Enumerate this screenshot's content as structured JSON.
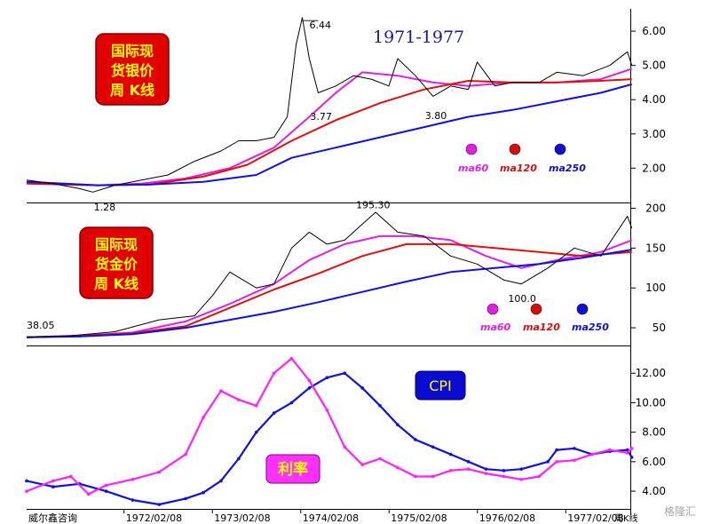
{
  "title": "1971-1977",
  "footer_source": "威尔鑫咨询",
  "footer_period": "周K线",
  "watermark": "格隆汇",
  "x_axis": {
    "range": [
      "1971-01",
      "1977-11"
    ],
    "ticks": [
      "1972/02/08",
      "1973/02/08",
      "1974/02/08",
      "1975/02/08",
      "1976/02/08",
      "1977/02/08"
    ]
  },
  "colors": {
    "price": "#000000",
    "ma60": "#e020e0",
    "ma120": "#e01010",
    "ma250": "#1010e0",
    "cpi": "#1010e0",
    "rate": "#ff20ff",
    "badge": "#e00000",
    "badge_text": "#ffff00"
  },
  "chart_data": [
    {
      "id": "silver",
      "type": "line",
      "badge_lines": [
        "国际现",
        "货银价",
        "周 K线"
      ],
      "y_ticks": [
        2.0,
        3.0,
        4.0,
        5.0,
        6.0
      ],
      "y_tick_labels": [
        "2.00",
        "3.00",
        "4.00",
        "5.00",
        "6.00"
      ],
      "ylim": [
        1.1,
        6.6
      ],
      "annotations": [
        {
          "x": 1974.12,
          "y": 6.44,
          "label": "6.44"
        },
        {
          "x": 1971.7,
          "y": 1.28,
          "label": "1.28"
        },
        {
          "x": 1974.25,
          "y": 3.77,
          "label": "3.77"
        },
        {
          "x": 1975.55,
          "y": 3.8,
          "label": "3.80"
        }
      ],
      "legend": [
        "ma60",
        "ma120",
        "ma250"
      ],
      "series": [
        {
          "key": "price",
          "x": [
            1971.0,
            1971.3,
            1971.6,
            1971.75,
            1972.0,
            1972.3,
            1972.6,
            1972.9,
            1973.2,
            1973.4,
            1973.6,
            1973.8,
            1973.95,
            1974.05,
            1974.12,
            1974.2,
            1974.3,
            1974.5,
            1974.7,
            1974.9,
            1975.1,
            1975.2,
            1975.4,
            1975.6,
            1975.8,
            1976.0,
            1976.1,
            1976.3,
            1976.5,
            1976.8,
            1977.0,
            1977.3,
            1977.6,
            1977.8,
            1977.85
          ],
          "y": [
            1.65,
            1.55,
            1.4,
            1.3,
            1.5,
            1.65,
            1.8,
            2.2,
            2.5,
            2.8,
            2.8,
            2.9,
            3.5,
            5.6,
            6.4,
            5.2,
            4.2,
            4.4,
            4.7,
            4.6,
            4.4,
            5.2,
            4.7,
            4.1,
            4.4,
            4.3,
            5.1,
            4.4,
            4.5,
            4.5,
            4.8,
            4.7,
            5.0,
            5.4,
            5.0
          ]
        },
        {
          "key": "ma60",
          "x": [
            1971.0,
            1971.8,
            1972.3,
            1972.8,
            1973.3,
            1973.8,
            1974.2,
            1974.5,
            1974.8,
            1975.2,
            1975.6,
            1976.0,
            1976.5,
            1977.0,
            1977.5,
            1977.85
          ],
          "y": [
            1.6,
            1.5,
            1.55,
            1.7,
            2.0,
            2.6,
            3.5,
            4.2,
            4.8,
            4.7,
            4.5,
            4.4,
            4.5,
            4.5,
            4.6,
            4.9
          ]
        },
        {
          "key": "ma120",
          "x": [
            1971.0,
            1971.8,
            1972.4,
            1973.0,
            1973.5,
            1974.0,
            1974.5,
            1975.0,
            1975.5,
            1976.0,
            1976.5,
            1977.0,
            1977.5,
            1977.85
          ],
          "y": [
            1.55,
            1.5,
            1.52,
            1.75,
            2.1,
            2.8,
            3.4,
            3.9,
            4.3,
            4.55,
            4.5,
            4.5,
            4.55,
            4.6
          ]
        },
        {
          "key": "ma250",
          "x": [
            1971.0,
            1971.8,
            1972.4,
            1973.0,
            1973.6,
            1974.0,
            1974.5,
            1975.0,
            1975.5,
            1976.0,
            1976.5,
            1977.0,
            1977.5,
            1977.85
          ],
          "y": [
            1.6,
            1.5,
            1.52,
            1.6,
            1.8,
            2.3,
            2.6,
            2.9,
            3.2,
            3.5,
            3.7,
            3.95,
            4.2,
            4.45
          ]
        }
      ]
    },
    {
      "id": "gold",
      "type": "line",
      "badge_lines": [
        "国际现",
        "货金价",
        "周 K线"
      ],
      "y_ticks": [
        50,
        100,
        150,
        200
      ],
      "y_tick_labels": [
        "50",
        "100",
        "150",
        "200"
      ],
      "ylim": [
        30,
        205
      ],
      "annotations": [
        {
          "x": 1974.95,
          "y": 195.3,
          "label": "195.30"
        },
        {
          "x": 1971.0,
          "y": 38.05,
          "label": "38.05"
        },
        {
          "x": 1976.45,
          "y": 100.0,
          "label": "100.0"
        }
      ],
      "legend": [
        "ma60",
        "ma120",
        "ma250"
      ],
      "series": [
        {
          "key": "price",
          "x": [
            1971.0,
            1971.5,
            1972.0,
            1972.5,
            1972.9,
            1973.1,
            1973.3,
            1973.6,
            1973.8,
            1974.0,
            1974.2,
            1974.4,
            1974.6,
            1974.8,
            1974.95,
            1975.2,
            1975.5,
            1975.8,
            1976.1,
            1976.4,
            1976.6,
            1976.9,
            1977.2,
            1977.5,
            1977.8,
            1977.85
          ],
          "y": [
            38,
            40,
            45,
            60,
            65,
            90,
            120,
            100,
            105,
            150,
            170,
            155,
            160,
            180,
            195,
            170,
            165,
            140,
            130,
            110,
            105,
            125,
            150,
            140,
            190,
            175
          ]
        },
        {
          "key": "ma60",
          "x": [
            1971.0,
            1971.6,
            1972.2,
            1972.8,
            1973.3,
            1973.8,
            1974.2,
            1974.6,
            1975.0,
            1975.4,
            1975.8,
            1976.2,
            1976.6,
            1977.0,
            1977.5,
            1977.85
          ],
          "y": [
            38,
            40,
            44,
            58,
            80,
            105,
            135,
            155,
            165,
            165,
            160,
            140,
            125,
            135,
            145,
            160
          ]
        },
        {
          "key": "ma120",
          "x": [
            1971.0,
            1971.6,
            1972.2,
            1972.8,
            1973.3,
            1973.8,
            1974.3,
            1974.8,
            1975.3,
            1975.8,
            1976.3,
            1976.8,
            1977.3,
            1977.85
          ],
          "y": [
            38,
            40,
            43,
            52,
            75,
            98,
            118,
            140,
            155,
            155,
            150,
            145,
            140,
            145
          ]
        },
        {
          "key": "ma250",
          "x": [
            1971.0,
            1971.6,
            1972.2,
            1972.8,
            1973.3,
            1973.8,
            1974.3,
            1974.8,
            1975.3,
            1975.8,
            1976.3,
            1976.8,
            1977.3,
            1977.85
          ],
          "y": [
            38,
            39,
            42,
            50,
            60,
            70,
            82,
            95,
            108,
            120,
            125,
            130,
            138,
            148
          ]
        }
      ]
    },
    {
      "id": "cpi_rate",
      "type": "line",
      "y_ticks": [
        4.0,
        6.0,
        8.0,
        10.0,
        12.0
      ],
      "y_tick_labels": [
        "4.00",
        "6.00",
        "8.00",
        "10.00",
        "12.00"
      ],
      "ylim": [
        2.8,
        13.7
      ],
      "series": [
        {
          "key": "cpi",
          "name": "CPI",
          "x": [
            1971.0,
            1971.3,
            1971.6,
            1971.9,
            1972.2,
            1972.5,
            1972.8,
            1973.0,
            1973.2,
            1973.4,
            1973.6,
            1973.8,
            1974.0,
            1974.2,
            1974.4,
            1974.6,
            1974.8,
            1975.0,
            1975.2,
            1975.4,
            1975.6,
            1975.8,
            1976.0,
            1976.2,
            1976.4,
            1976.6,
            1976.9,
            1977.0,
            1977.2,
            1977.4,
            1977.6,
            1977.8,
            1977.85
          ],
          "y": [
            4.7,
            4.3,
            4.5,
            4.0,
            3.4,
            3.1,
            3.5,
            3.9,
            4.7,
            6.2,
            8.0,
            9.3,
            10.0,
            11.0,
            11.7,
            12.0,
            11.0,
            9.8,
            8.5,
            7.5,
            7.0,
            6.5,
            6.0,
            5.5,
            5.4,
            5.5,
            6.0,
            6.8,
            6.9,
            6.5,
            6.7,
            6.8,
            6.3
          ]
        },
        {
          "key": "rate",
          "name": "利率",
          "x": [
            1971.0,
            1971.3,
            1971.5,
            1971.7,
            1971.9,
            1972.2,
            1972.5,
            1972.8,
            1973.0,
            1973.2,
            1973.4,
            1973.6,
            1973.8,
            1974.0,
            1974.2,
            1974.4,
            1974.6,
            1974.8,
            1975.0,
            1975.2,
            1975.4,
            1975.6,
            1975.8,
            1976.0,
            1976.2,
            1976.4,
            1976.6,
            1976.8,
            1977.0,
            1977.2,
            1977.4,
            1977.6,
            1977.8,
            1977.85
          ],
          "y": [
            4.0,
            4.7,
            5.0,
            3.8,
            4.4,
            4.8,
            5.3,
            6.5,
            9.0,
            10.8,
            10.2,
            9.8,
            12.0,
            13.0,
            11.5,
            9.5,
            7.0,
            5.8,
            6.2,
            5.6,
            5.0,
            5.0,
            5.4,
            5.5,
            5.2,
            5.0,
            4.8,
            5.0,
            6.0,
            6.1,
            6.5,
            6.8,
            6.6,
            6.9
          ]
        }
      ]
    }
  ]
}
